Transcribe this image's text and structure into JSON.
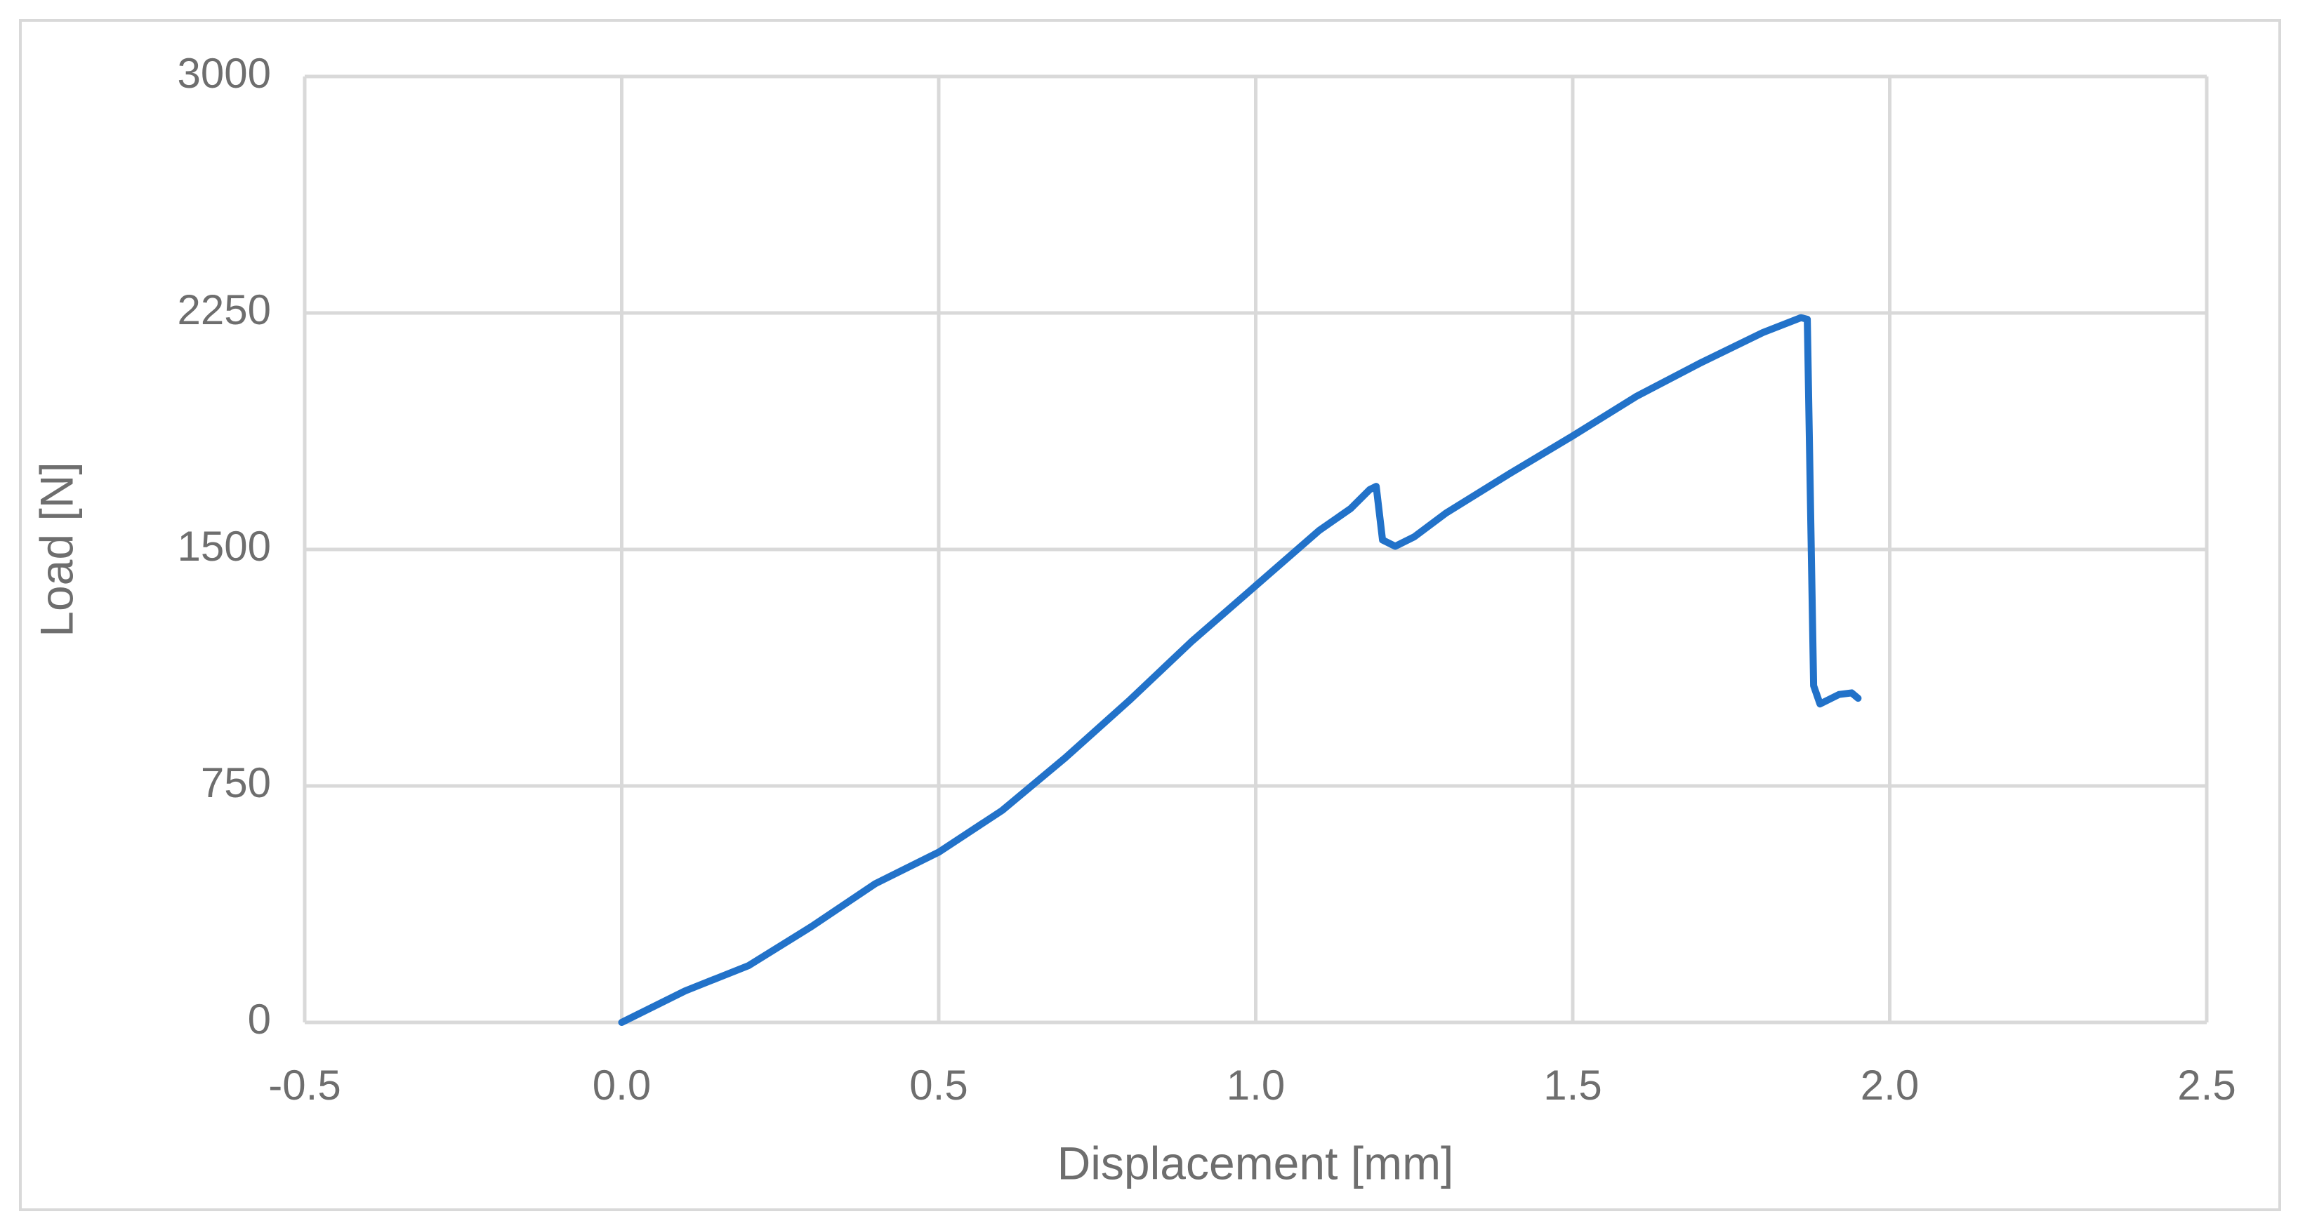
{
  "chart_data": {
    "type": "line",
    "x_label": "Displacement [mm]",
    "y_label": "Load [N]",
    "x": [
      0.0,
      0.1,
      0.2,
      0.3,
      0.4,
      0.5,
      0.6,
      0.7,
      0.8,
      0.9,
      1.0,
      1.1,
      1.15,
      1.18,
      1.19,
      1.2,
      1.22,
      1.25,
      1.3,
      1.4,
      1.5,
      1.6,
      1.7,
      1.8,
      1.86,
      1.87,
      1.88,
      1.89,
      1.92,
      1.94,
      1.95
    ],
    "series": [
      {
        "name": "Load",
        "color": "#2272c9",
        "values": [
          0,
          100,
          180,
          305,
          440,
          540,
          672,
          840,
          1020,
          1210,
          1385,
          1560,
          1630,
          1690,
          1700,
          1530,
          1510,
          1540,
          1615,
          1740,
          1860,
          1985,
          2090,
          2188,
          2235,
          2230,
          1068,
          1010,
          1040,
          1045,
          1028
        ]
      }
    ],
    "xlim": [
      -0.5,
      2.5
    ],
    "xticks": [
      -0.5,
      {
        "value": 0,
        "label": "0.0"
      },
      0.5,
      {
        "value": 1,
        "label": "1.0"
      },
      1.5,
      {
        "value": 2,
        "label": "2.0"
      },
      2.5
    ],
    "ylim": [
      0,
      3000
    ],
    "yticks": [
      0,
      750,
      1500,
      2250,
      3000
    ],
    "grid": true
  }
}
